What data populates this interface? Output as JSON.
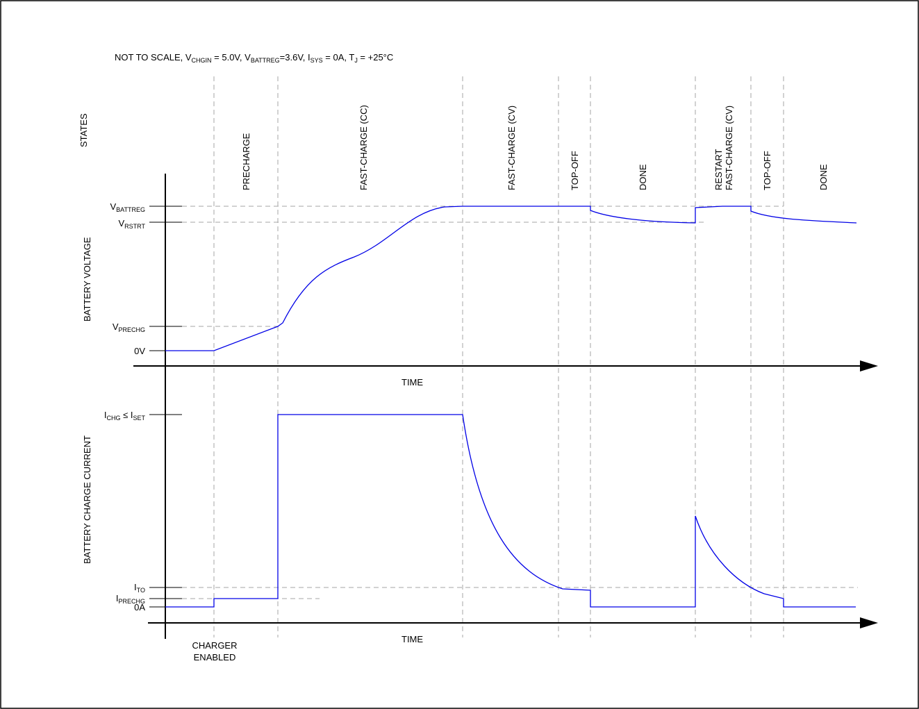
{
  "note": {
    "prefix": "NOT TO SCALE, V",
    "chgin_sub": "CHGIN",
    "mid1": " = 5.0V, V",
    "battreg_sub": "BATTREG",
    "mid2": "=3.6V, I",
    "sys_sub": "SYS",
    "mid3": " = 0A, T",
    "tj_sub": "J",
    "suffix": " = +25°C"
  },
  "states_label": "STATES",
  "states": [
    {
      "lines": [
        "PRECHARGE"
      ]
    },
    {
      "lines": [
        "FAST-CHARGE (CC)"
      ]
    },
    {
      "lines": [
        "FAST-CHARGE (CV)"
      ]
    },
    {
      "lines": [
        "TOP-OFF"
      ]
    },
    {
      "lines": [
        "DONE"
      ]
    },
    {
      "lines": [
        "RESTART",
        "FAST-CHARGE (CV)"
      ]
    },
    {
      "lines": [
        "TOP-OFF"
      ]
    },
    {
      "lines": [
        "DONE"
      ]
    }
  ],
  "voltage_axis": {
    "title": "BATTERY VOLTAGE",
    "levels": {
      "vbattreg": {
        "main": "V",
        "sub": "BATTREG"
      },
      "vrstrt": {
        "main": "V",
        "sub": "RSTRT"
      },
      "vprechg": {
        "main": "V",
        "sub": "PRECHG"
      },
      "zero": "0V"
    },
    "time_label": "TIME"
  },
  "current_axis": {
    "title": "BATTERY CHARGE CURRENT",
    "levels": {
      "ichg_main": "I",
      "ichg_sub": "CHG",
      "ichg_rel": " ≤ I",
      "iset_sub": "SET",
      "ito": {
        "main": "I",
        "sub": "TO"
      },
      "iprechg": {
        "main": "I",
        "sub": "PRECHG"
      },
      "zero": "0A"
    },
    "time_label": "TIME"
  },
  "charger_enabled": [
    "CHARGER",
    "ENABLED"
  ],
  "colors": {
    "trace": "#0000e6",
    "guide": "#a6a6a6",
    "axis": "#000000"
  }
}
